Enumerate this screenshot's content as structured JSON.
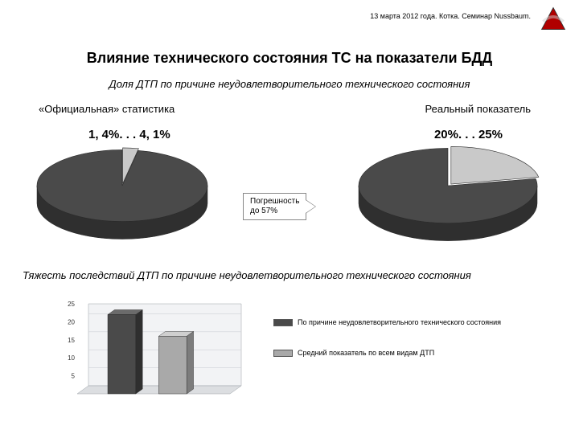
{
  "header": "13 марта 2012 года. Котка. Семинар Nussbaum.",
  "logo": {
    "triangle": "#b00000",
    "stroke": "#333333"
  },
  "title": "Влияние технического состояния ТС на показатели БДД",
  "subtitle1": "Доля ДТП по причине неудовлетворительного технического состояния",
  "pie_left": {
    "section_label": "«Официальная» статистика",
    "value_label": "1, 4%. . . 4, 1%",
    "type": "pie3d",
    "slices": [
      {
        "value": 3,
        "color": "#c9c9c9"
      },
      {
        "value": 97,
        "color": "#4a4a4a"
      }
    ],
    "depth_color": "#2f2f2f",
    "outline": "#2a2a2a"
  },
  "pie_right": {
    "section_label": "Реальный показатель",
    "value_label": "20%. . . 25%",
    "type": "pie3d",
    "slices": [
      {
        "value": 22,
        "color": "#c9c9c9"
      },
      {
        "value": 78,
        "color": "#4a4a4a"
      }
    ],
    "depth_color": "#2f2f2f",
    "outline": "#2a2a2a"
  },
  "callout": {
    "line1": "Погрешность",
    "line2": "до 57%"
  },
  "subtitle2": "Тяжесть последствий ДТП по причине неудовлетворительного технического состояния",
  "bar_chart": {
    "type": "bar3d",
    "y_max": 25,
    "y_ticks": [
      5,
      10,
      15,
      20,
      25
    ],
    "axis_color": "#9aa0a6",
    "grid_color": "#cfd2d6",
    "plot_bg": "#f2f3f5",
    "floor_bg": "#dcdee1",
    "bars": [
      {
        "value": 22,
        "fill": "#4a4a4a",
        "side": "#2f2f2f",
        "top": "#6b6b6b"
      },
      {
        "value": 16,
        "fill": "#a9a9a9",
        "side": "#7c7c7c",
        "top": "#cfcfcf"
      }
    ],
    "tick_font_size": 8
  },
  "legend": {
    "row1": {
      "color": "#4a4a4a",
      "label": "По причине неудовлетворительного технического состояния"
    },
    "row2": {
      "color": "#a9a9a9",
      "label": "Средний показатель по всем видам ДТП"
    }
  }
}
